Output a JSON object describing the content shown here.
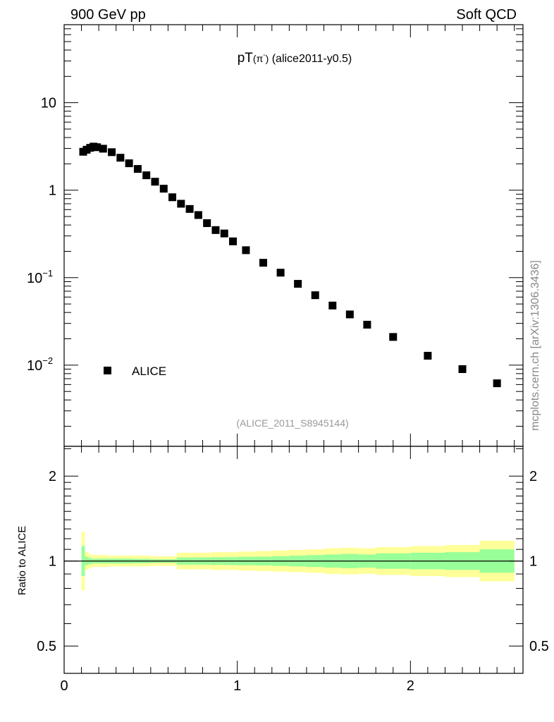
{
  "header": {
    "left": "900 GeV pp",
    "right": "Soft QCD"
  },
  "side_label": "mcplots.cern.ch [arXiv:1306.3436]",
  "colors": {
    "stat_band": "#99ff99",
    "total_band": "#ffff99",
    "marker": "#000000",
    "analysis_text": "#999999"
  },
  "chart_data": [
    {
      "type": "scatter",
      "title": {
        "main": "pT",
        "particle": "(π",
        "sup": "-",
        "close": ")",
        "tag": "(alice2011-y0.5)"
      },
      "analysis": "(ALICE_2011_S8945144)",
      "legend": [
        {
          "label": "ALICE",
          "marker": "square",
          "placement": "lower-left"
        }
      ],
      "xlim": [
        0,
        2.65
      ],
      "ylog": true,
      "ylim": [
        0.00118,
        78
      ],
      "y_ticks": [
        {
          "value": 10,
          "label": "10"
        },
        {
          "value": 1,
          "label": "1"
        },
        {
          "value": 0.1,
          "label": "10",
          "sup": "−1"
        },
        {
          "value": 0.01,
          "label": "10",
          "sup": "−2"
        }
      ],
      "bins": [
        0.1,
        0.12,
        0.14,
        0.16,
        0.18,
        0.2,
        0.25,
        0.3,
        0.35,
        0.4,
        0.45,
        0.5,
        0.55,
        0.6,
        0.65,
        0.7,
        0.75,
        0.8,
        0.85,
        0.9,
        0.95,
        1.0,
        1.1,
        1.2,
        1.3,
        1.4,
        1.5,
        1.6,
        1.7,
        1.8,
        2.0,
        2.2,
        2.4,
        2.6
      ],
      "series": [
        {
          "name": "ALICE",
          "x": [
            0.11,
            0.13,
            0.15,
            0.17,
            0.19,
            0.225,
            0.275,
            0.325,
            0.375,
            0.425,
            0.475,
            0.525,
            0.575,
            0.625,
            0.675,
            0.725,
            0.775,
            0.825,
            0.875,
            0.925,
            0.975,
            1.05,
            1.15,
            1.25,
            1.35,
            1.45,
            1.55,
            1.65,
            1.75,
            1.9,
            2.1,
            2.3,
            2.5
          ],
          "y": [
            2.75,
            2.9,
            3.05,
            3.15,
            3.1,
            2.98,
            2.72,
            2.35,
            2.03,
            1.75,
            1.48,
            1.25,
            1.04,
            0.83,
            0.7,
            0.61,
            0.52,
            0.42,
            0.35,
            0.32,
            0.26,
            0.206,
            0.148,
            0.114,
            0.085,
            0.063,
            0.048,
            0.038,
            0.029,
            0.021,
            0.0128,
            0.009,
            0.0062
          ]
        }
      ]
    },
    {
      "type": "area",
      "ylabel": "Ratio to ALICE",
      "xlim": [
        0,
        2.65
      ],
      "ylog": true,
      "ylim": [
        0.4,
        2.55
      ],
      "y_ticks": [
        {
          "value": 2,
          "label": "2"
        },
        {
          "value": 1,
          "label": "1"
        },
        {
          "value": 0.5,
          "label": "0.5"
        }
      ],
      "x_ticks": [
        {
          "value": 0,
          "label": "0"
        },
        {
          "value": 1,
          "label": "1"
        },
        {
          "value": 2,
          "label": "2"
        }
      ],
      "stat_rel_err": [
        0.13,
        0.035,
        0.025,
        0.02,
        0.02,
        0.02,
        0.02,
        0.02,
        0.02,
        0.018,
        0.018,
        0.015,
        0.015,
        0.015,
        0.03,
        0.03,
        0.03,
        0.03,
        0.032,
        0.032,
        0.033,
        0.035,
        0.037,
        0.04,
        0.045,
        0.05,
        0.055,
        0.06,
        0.055,
        0.065,
        0.07,
        0.075,
        0.1
      ],
      "total_rel_err": [
        0.27,
        0.075,
        0.06,
        0.05,
        0.05,
        0.05,
        0.045,
        0.045,
        0.045,
        0.045,
        0.045,
        0.04,
        0.04,
        0.04,
        0.07,
        0.07,
        0.07,
        0.07,
        0.075,
        0.075,
        0.075,
        0.08,
        0.085,
        0.09,
        0.095,
        0.1,
        0.11,
        0.115,
        0.11,
        0.12,
        0.13,
        0.14,
        0.18
      ],
      "reference_line": 1
    }
  ]
}
